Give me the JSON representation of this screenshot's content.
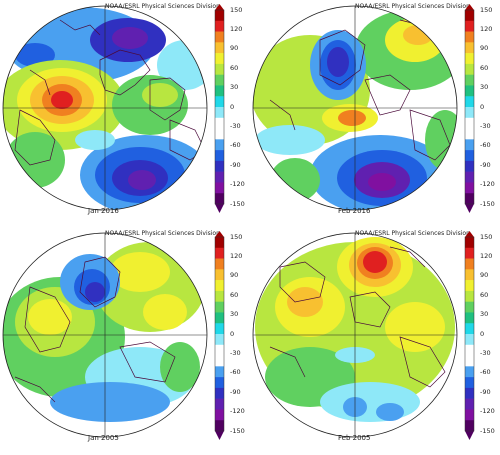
{
  "panels": [
    {
      "caption": "Jan 2016",
      "credit": "NOAA/ESRL Physical Sciences Division"
    },
    {
      "caption": "Feb 2016",
      "credit": "NOAA/ESRL Physical Sciences Division"
    },
    {
      "caption": "Jan 2005",
      "credit": "NOAA/ESRL Physical Sciences Division"
    },
    {
      "caption": "Feb 2005",
      "credit": "NOAA/ESRL Physical Sciences Division"
    }
  ],
  "colorbar": {
    "ticks": [
      "150",
      "120",
      "90",
      "60",
      "30",
      "0",
      "-30",
      "-60",
      "-90",
      "-120",
      "-150"
    ],
    "colors": [
      "#a00000",
      "#e02020",
      "#f08020",
      "#f8c030",
      "#f0f030",
      "#b8e640",
      "#60d060",
      "#20c080",
      "#20d8e8",
      "#8ee8f8",
      "#ffffff",
      "#ffffff",
      "#4aa0f0",
      "#2060e0",
      "#3030c0",
      "#6020b0",
      "#8010a0",
      "#500060"
    ]
  }
}
